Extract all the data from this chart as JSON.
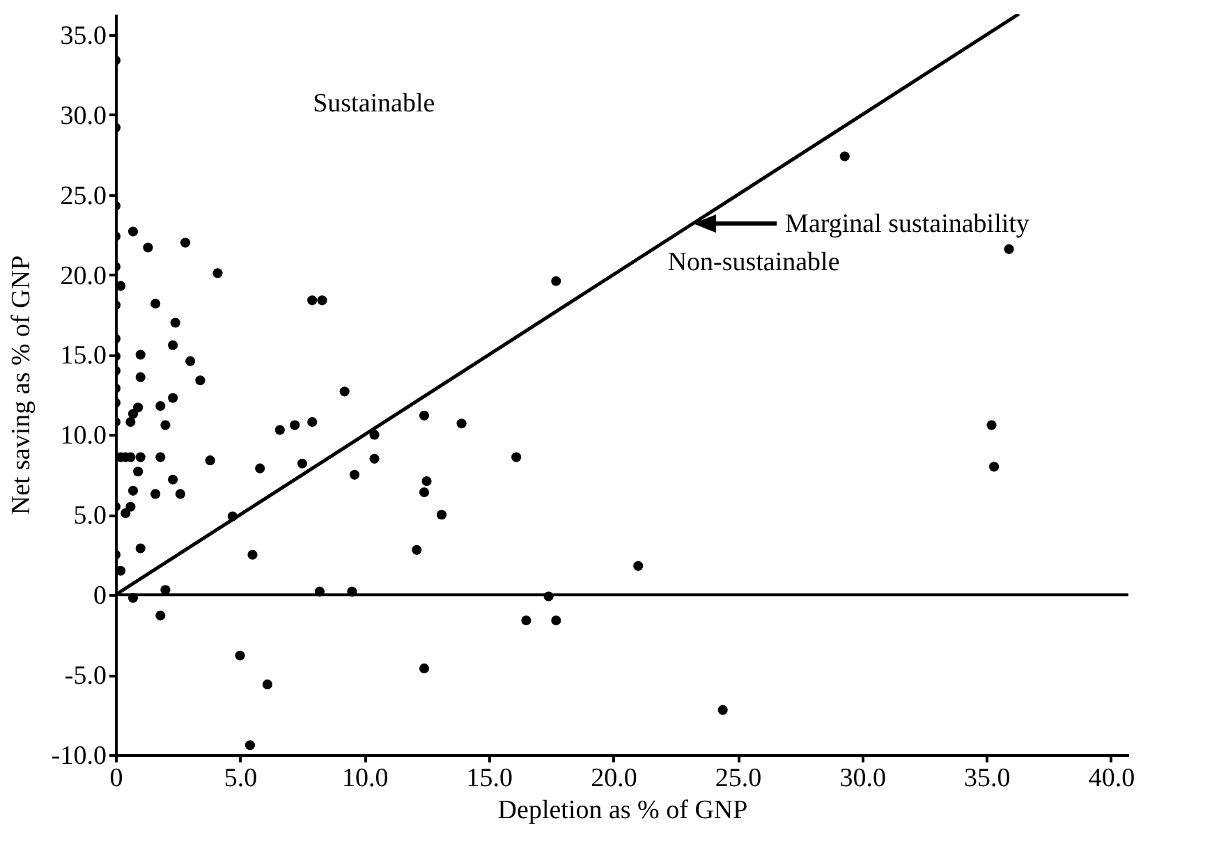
{
  "chart_data": {
    "type": "scatter",
    "xlabel": "Depletion as % of GNP",
    "ylabel": "Net saving as % of GNP",
    "xlim": [
      0,
      40.7
    ],
    "ylim": [
      -10,
      36.3
    ],
    "xticks": [
      0,
      {
        "value": 5,
        "label": "5.0"
      },
      {
        "value": 10,
        "label": "10.0"
      },
      {
        "value": 15,
        "label": "15.0"
      },
      {
        "value": 20,
        "label": "20.0"
      },
      {
        "value": 25,
        "label": "25.0"
      },
      {
        "value": 30,
        "label": "30.0"
      },
      {
        "value": 35,
        "label": "35.0"
      },
      {
        "value": 40,
        "label": "40.0"
      }
    ],
    "yticks": [
      {
        "value": -10,
        "label": "-10.0"
      },
      {
        "value": -5,
        "label": "-5.0"
      },
      0,
      {
        "value": 5,
        "label": "5.0"
      },
      {
        "value": 10,
        "label": "10.0"
      },
      {
        "value": 15,
        "label": "15.0"
      },
      {
        "value": 20,
        "label": "20.0"
      },
      {
        "value": 25,
        "label": "25.0"
      },
      {
        "value": 30,
        "label": "30.0"
      },
      {
        "value": 35,
        "label": "35.0"
      }
    ],
    "grid": false,
    "marker": "circle",
    "series": [
      {
        "color": "#000000",
        "x": [
          0,
          0,
          0,
          0,
          0,
          0.2,
          0,
          0,
          0,
          0,
          0,
          0,
          0,
          0,
          0,
          0.2,
          0.7,
          1.3,
          2.8,
          4.1,
          1.6,
          2.4,
          2.3,
          1.0,
          3.0,
          1.0,
          3.4,
          0.9,
          1.8,
          2.3,
          7.9,
          8.3,
          9.2,
          0.6,
          0.7,
          2.0,
          0.2,
          0.4,
          0.6,
          1.0,
          1.8,
          3.8,
          5.8,
          6.6,
          7.2,
          7.9,
          7.5,
          9.6,
          0.9,
          0.7,
          1.6,
          2.3,
          2.6,
          0.4,
          0.6,
          1.0,
          4.7,
          5.5,
          2.0,
          0.7,
          1.8,
          5.0,
          6.1,
          5.4,
          8.2,
          9.5,
          17.7,
          10.4,
          10.4,
          12.4,
          13.9,
          16.1,
          12.5,
          12.4,
          13.1,
          12.1,
          21.0,
          17.4,
          16.5,
          17.7,
          12.4,
          24.4,
          29.3,
          35.9,
          35.2,
          35.3
        ],
        "values": [
          33.4,
          29.2,
          24.3,
          22.4,
          20.5,
          19.3,
          18.1,
          16.0,
          14.9,
          14.0,
          12.9,
          12.0,
          10.8,
          5.5,
          2.5,
          1.5,
          22.7,
          21.7,
          22.0,
          20.1,
          18.2,
          17.0,
          15.6,
          15.0,
          14.6,
          13.6,
          13.4,
          11.7,
          11.8,
          12.3,
          18.4,
          18.4,
          12.7,
          10.8,
          11.3,
          10.6,
          8.6,
          8.6,
          8.6,
          8.6,
          8.6,
          8.4,
          7.9,
          10.3,
          10.6,
          10.8,
          8.2,
          7.5,
          7.7,
          6.5,
          6.3,
          7.2,
          6.3,
          5.1,
          5.5,
          2.9,
          4.9,
          2.5,
          0.3,
          -0.2,
          -1.3,
          -3.8,
          -5.6,
          -9.4,
          0.2,
          0.2,
          19.6,
          10.0,
          8.5,
          11.2,
          10.7,
          8.6,
          7.1,
          6.4,
          5.0,
          2.8,
          1.8,
          -0.1,
          -1.6,
          -1.6,
          -4.6,
          -7.2,
          27.4,
          21.6,
          10.6,
          8.0
        ]
      },
      {
        "type": "line",
        "color": "#000000",
        "line_style": "solid",
        "marker": "none",
        "x": [
          0,
          36.3
        ],
        "values": [
          0,
          36.3
        ]
      }
    ],
    "ref_lines": [
      {
        "axis": "y",
        "value": 0,
        "color": "#000000",
        "line_style": "solid"
      }
    ],
    "annotations": [
      "Sustainable",
      "Non-sustainable",
      "Marginal sustainability"
    ]
  }
}
